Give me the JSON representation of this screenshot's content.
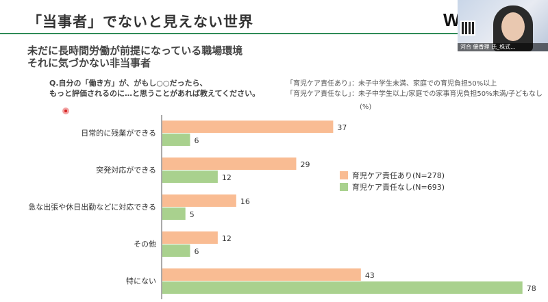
{
  "slide": {
    "title": "「当事者」でないと見えない世界",
    "subtitle_line1": "未だに長時間労働が前提になっている職場環境",
    "subtitle_line2": "それに気づかない非当事者",
    "question_line1": "Q.自分の「働き方」が、がもし○○だったら、",
    "question_line2": "もっと評価されるのに…と思うことがあれば教えてください。",
    "legend_note_line1": "「育児ケア責任あり」：未子中学生未満、家庭での育児負担50%以上",
    "legend_note_line2": "「育児ケア責任なし」：未子中学生以上/家庭での家事育児負担50%未満/子どもなし",
    "unit": "(%)",
    "logo": "W",
    "webcam_name": "河合 優香理 氏_株式..."
  },
  "colors": {
    "series_with_care": "#f9bc93",
    "series_without_care": "#a9d18e",
    "title_rule": "#2e8b57",
    "text": "#333333"
  },
  "chart_data": {
    "type": "bar",
    "orientation": "horizontal",
    "categories": [
      "日常的に残業ができる",
      "突発対応ができる",
      "急な出張や休日出勤などに対応できる",
      "その他",
      "特にない"
    ],
    "series": [
      {
        "name": "育児ケア責任あり(N=278)",
        "values": [
          37,
          29,
          16,
          12,
          43
        ]
      },
      {
        "name": "育児ケア責任なし(N=693)",
        "values": [
          6,
          12,
          5,
          6,
          78
        ]
      }
    ],
    "unit": "(%)",
    "xlim": [
      0,
      80
    ],
    "grid": false,
    "legend_position": "right"
  }
}
